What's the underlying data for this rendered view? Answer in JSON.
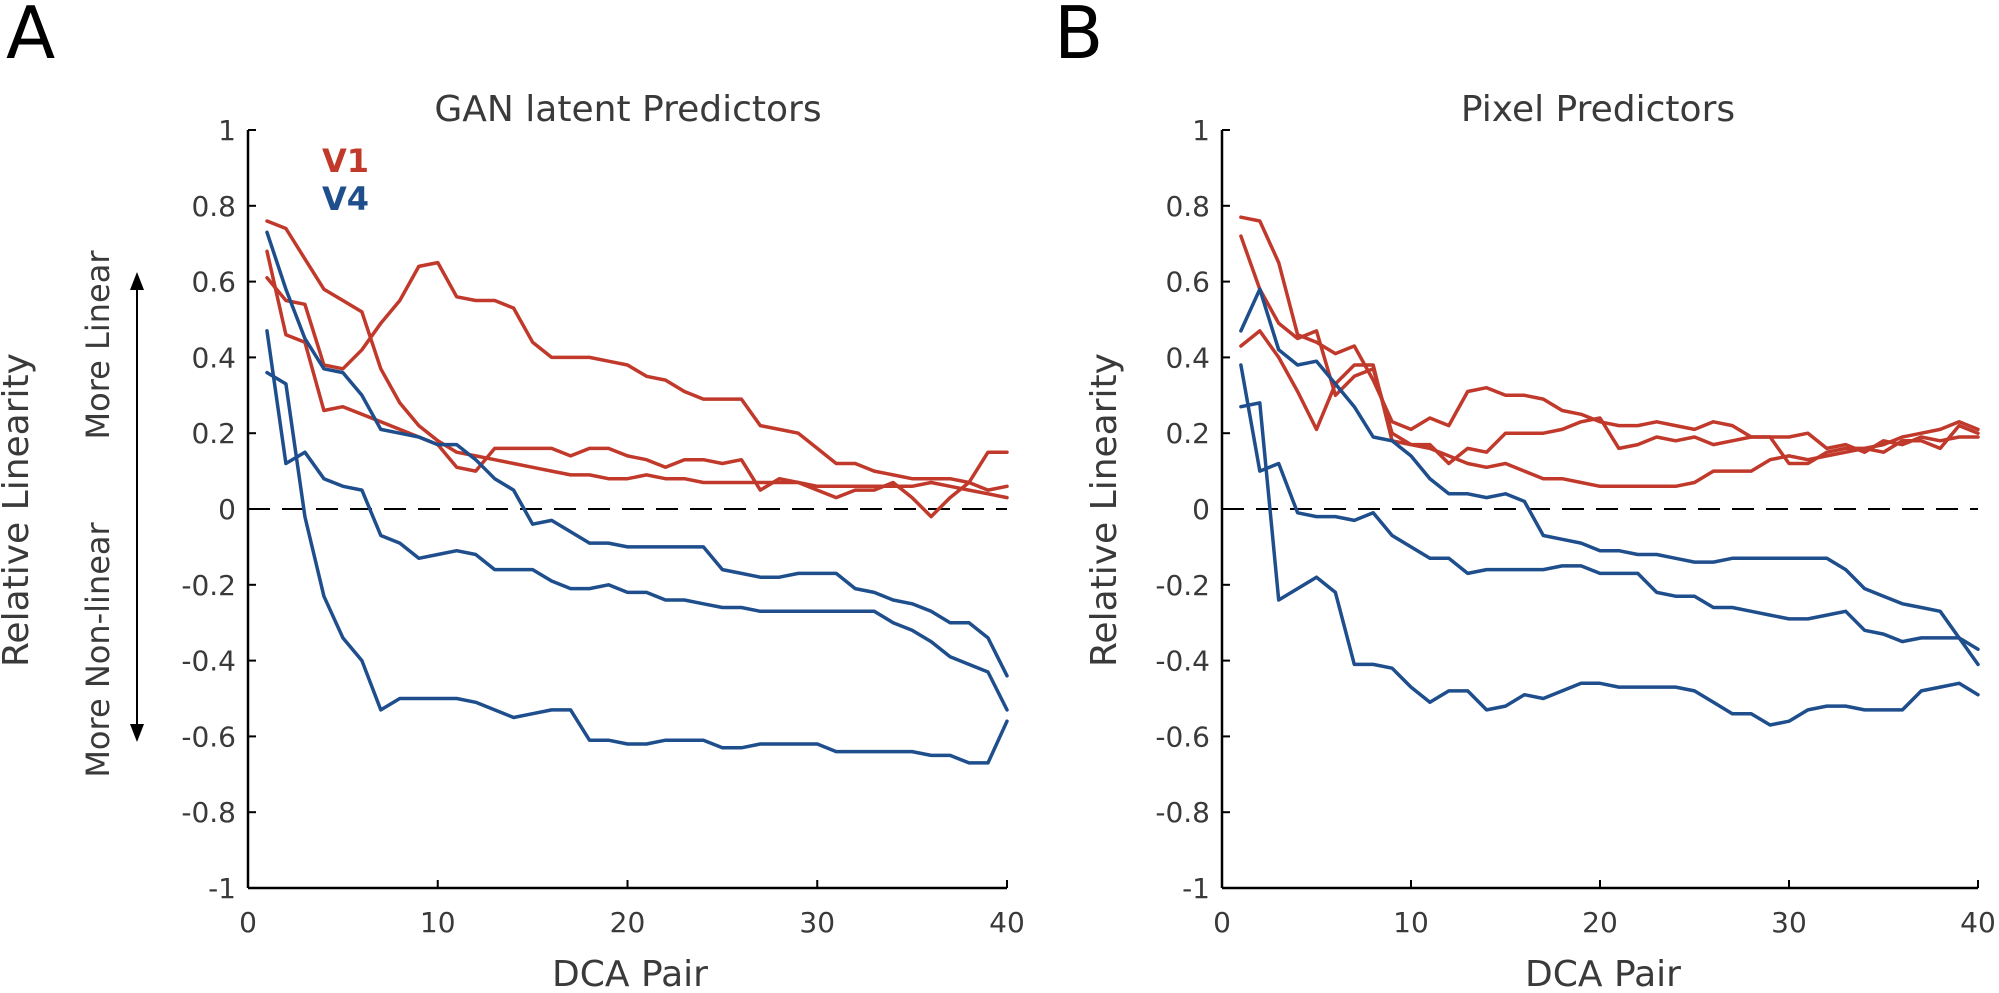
{
  "panel_letters": [
    "A",
    "B"
  ],
  "annotations": {
    "more_linear": "More Linear",
    "more_nonlinear": "More Non-linear"
  },
  "chart_data": [
    {
      "type": "line",
      "title": "GAN latent Predictors",
      "xlabel": "DCA Pair",
      "ylabel": "Relative Linearity",
      "xlim": [
        0,
        40
      ],
      "ylim": [
        -1,
        1
      ],
      "xticks": [
        "0",
        "10",
        "20",
        "30",
        "40"
      ],
      "yticks": [
        "1",
        "0.8",
        "0.6",
        "0.4",
        "0.2",
        "0",
        "-0.2",
        "-0.4",
        "-0.6",
        "-0.8",
        "-1"
      ],
      "reference_line_y": 0,
      "legend": [
        {
          "label": "V1",
          "color": "#c0392b"
        },
        {
          "label": "V4",
          "color": "#1f4e8c"
        }
      ],
      "series": [
        {
          "group": "V1",
          "color": "#c0392b",
          "x": [
            1,
            2,
            3,
            4,
            5,
            6,
            7,
            8,
            9,
            10,
            11,
            12,
            13,
            14,
            15,
            16,
            17,
            18,
            19,
            20,
            21,
            22,
            23,
            24,
            25,
            26,
            27,
            28,
            29,
            30,
            31,
            32,
            33,
            34,
            35,
            36,
            37,
            38,
            39,
            40
          ],
          "y": [
            0.76,
            0.74,
            0.66,
            0.58,
            0.55,
            0.52,
            0.37,
            0.28,
            0.22,
            0.18,
            0.15,
            0.14,
            0.13,
            0.12,
            0.11,
            0.1,
            0.09,
            0.09,
            0.08,
            0.08,
            0.09,
            0.08,
            0.08,
            0.07,
            0.07,
            0.07,
            0.07,
            0.07,
            0.07,
            0.06,
            0.06,
            0.06,
            0.06,
            0.06,
            0.06,
            0.07,
            0.06,
            0.05,
            0.04,
            0.03
          ]
        },
        {
          "group": "V1",
          "color": "#c0392b",
          "x": [
            1,
            2,
            3,
            4,
            5,
            6,
            7,
            8,
            9,
            10,
            11,
            12,
            13,
            14,
            15,
            16,
            17,
            18,
            19,
            20,
            21,
            22,
            23,
            24,
            25,
            26,
            27,
            28,
            29,
            30,
            31,
            32,
            33,
            34,
            35,
            36,
            37,
            38,
            39,
            40
          ],
          "y": [
            0.61,
            0.55,
            0.54,
            0.38,
            0.37,
            0.42,
            0.49,
            0.55,
            0.64,
            0.65,
            0.56,
            0.55,
            0.55,
            0.53,
            0.44,
            0.4,
            0.4,
            0.4,
            0.39,
            0.38,
            0.35,
            0.34,
            0.31,
            0.29,
            0.29,
            0.29,
            0.22,
            0.21,
            0.2,
            0.16,
            0.12,
            0.12,
            0.1,
            0.09,
            0.08,
            0.08,
            0.08,
            0.07,
            0.05,
            0.06
          ]
        },
        {
          "group": "V1",
          "color": "#c0392b",
          "x": [
            1,
            2,
            3,
            4,
            5,
            6,
            7,
            8,
            9,
            10,
            11,
            12,
            13,
            14,
            15,
            16,
            17,
            18,
            19,
            20,
            21,
            22,
            23,
            24,
            25,
            26,
            27,
            28,
            29,
            30,
            31,
            32,
            33,
            34,
            35,
            36,
            37,
            38,
            39,
            40
          ],
          "y": [
            0.68,
            0.46,
            0.44,
            0.26,
            0.27,
            0.25,
            0.23,
            0.21,
            0.19,
            0.17,
            0.11,
            0.1,
            0.16,
            0.16,
            0.16,
            0.16,
            0.14,
            0.16,
            0.16,
            0.14,
            0.13,
            0.11,
            0.13,
            0.13,
            0.12,
            0.13,
            0.05,
            0.08,
            0.07,
            0.05,
            0.03,
            0.05,
            0.05,
            0.07,
            0.03,
            -0.02,
            0.03,
            0.07,
            0.15,
            0.15
          ]
        },
        {
          "group": "V4",
          "color": "#1f4e8c",
          "x": [
            1,
            2,
            3,
            4,
            5,
            6,
            7,
            8,
            9,
            10,
            11,
            12,
            13,
            14,
            15,
            16,
            17,
            18,
            19,
            20,
            21,
            22,
            23,
            24,
            25,
            26,
            27,
            28,
            29,
            30,
            31,
            32,
            33,
            34,
            35,
            36,
            37,
            38,
            39,
            40
          ],
          "y": [
            0.73,
            0.58,
            0.45,
            0.37,
            0.36,
            0.3,
            0.21,
            0.2,
            0.19,
            0.17,
            0.17,
            0.13,
            0.08,
            0.05,
            -0.04,
            -0.03,
            -0.06,
            -0.09,
            -0.09,
            -0.1,
            -0.1,
            -0.1,
            -0.1,
            -0.1,
            -0.16,
            -0.17,
            -0.18,
            -0.18,
            -0.17,
            -0.17,
            -0.17,
            -0.21,
            -0.22,
            -0.24,
            -0.25,
            -0.27,
            -0.3,
            -0.3,
            -0.34,
            -0.44
          ]
        },
        {
          "group": "V4",
          "color": "#1f4e8c",
          "x": [
            1,
            2,
            3,
            4,
            5,
            6,
            7,
            8,
            9,
            10,
            11,
            12,
            13,
            14,
            15,
            16,
            17,
            18,
            19,
            20,
            21,
            22,
            23,
            24,
            25,
            26,
            27,
            28,
            29,
            30,
            31,
            32,
            33,
            34,
            35,
            36,
            37,
            38,
            39,
            40
          ],
          "y": [
            0.47,
            0.12,
            0.15,
            0.08,
            0.06,
            0.05,
            -0.07,
            -0.09,
            -0.13,
            -0.12,
            -0.11,
            -0.12,
            -0.16,
            -0.16,
            -0.16,
            -0.19,
            -0.21,
            -0.21,
            -0.2,
            -0.22,
            -0.22,
            -0.24,
            -0.24,
            -0.25,
            -0.26,
            -0.26,
            -0.27,
            -0.27,
            -0.27,
            -0.27,
            -0.27,
            -0.27,
            -0.27,
            -0.3,
            -0.32,
            -0.35,
            -0.39,
            -0.41,
            -0.43,
            -0.53
          ]
        },
        {
          "group": "V4",
          "color": "#1f4e8c",
          "x": [
            1,
            2,
            3,
            4,
            5,
            6,
            7,
            8,
            9,
            10,
            11,
            12,
            13,
            14,
            15,
            16,
            17,
            18,
            19,
            20,
            21,
            22,
            23,
            24,
            25,
            26,
            27,
            28,
            29,
            30,
            31,
            32,
            33,
            34,
            35,
            36,
            37,
            38,
            39,
            40
          ],
          "y": [
            0.36,
            0.33,
            -0.02,
            -0.23,
            -0.34,
            -0.4,
            -0.53,
            -0.5,
            -0.5,
            -0.5,
            -0.5,
            -0.51,
            -0.53,
            -0.55,
            -0.54,
            -0.53,
            -0.53,
            -0.61,
            -0.61,
            -0.62,
            -0.62,
            -0.61,
            -0.61,
            -0.61,
            -0.63,
            -0.63,
            -0.62,
            -0.62,
            -0.62,
            -0.62,
            -0.64,
            -0.64,
            -0.64,
            -0.64,
            -0.64,
            -0.65,
            -0.65,
            -0.67,
            -0.67,
            -0.56
          ]
        }
      ]
    },
    {
      "type": "line",
      "title": "Pixel Predictors",
      "xlabel": "DCA Pair",
      "ylabel": "Relative Linearity",
      "xlim": [
        0,
        40
      ],
      "ylim": [
        -1,
        1
      ],
      "xticks": [
        "0",
        "10",
        "20",
        "30",
        "40"
      ],
      "yticks": [
        "1",
        "0.8",
        "0.6",
        "0.4",
        "0.2",
        "0",
        "-0.2",
        "-0.4",
        "-0.6",
        "-0.8",
        "-1"
      ],
      "reference_line_y": 0,
      "series": [
        {
          "group": "V1",
          "color": "#c0392b",
          "x": [
            1,
            2,
            3,
            4,
            5,
            6,
            7,
            8,
            9,
            10,
            11,
            12,
            13,
            14,
            15,
            16,
            17,
            18,
            19,
            20,
            21,
            22,
            23,
            24,
            25,
            26,
            27,
            28,
            29,
            30,
            31,
            32,
            33,
            34,
            35,
            36,
            37,
            38,
            39,
            40
          ],
          "y": [
            0.77,
            0.76,
            0.65,
            0.46,
            0.44,
            0.41,
            0.43,
            0.34,
            0.23,
            0.21,
            0.24,
            0.22,
            0.31,
            0.32,
            0.3,
            0.3,
            0.29,
            0.26,
            0.25,
            0.23,
            0.22,
            0.22,
            0.23,
            0.22,
            0.21,
            0.23,
            0.22,
            0.19,
            0.19,
            0.19,
            0.2,
            0.16,
            0.17,
            0.15,
            0.18,
            0.17,
            0.19,
            0.18,
            0.19,
            0.19
          ]
        },
        {
          "group": "V1",
          "color": "#c0392b",
          "x": [
            1,
            2,
            3,
            4,
            5,
            6,
            7,
            8,
            9,
            10,
            11,
            12,
            13,
            14,
            15,
            16,
            17,
            18,
            19,
            20,
            21,
            22,
            23,
            24,
            25,
            26,
            27,
            28,
            29,
            30,
            31,
            32,
            33,
            34,
            35,
            36,
            37,
            38,
            39,
            40
          ],
          "y": [
            0.72,
            0.58,
            0.49,
            0.45,
            0.47,
            0.3,
            0.35,
            0.37,
            0.2,
            0.17,
            0.16,
            0.14,
            0.12,
            0.11,
            0.12,
            0.1,
            0.08,
            0.08,
            0.07,
            0.06,
            0.06,
            0.06,
            0.06,
            0.06,
            0.07,
            0.1,
            0.1,
            0.1,
            0.13,
            0.14,
            0.13,
            0.14,
            0.15,
            0.16,
            0.17,
            0.19,
            0.2,
            0.21,
            0.23,
            0.21
          ]
        },
        {
          "group": "V1",
          "color": "#c0392b",
          "x": [
            1,
            2,
            3,
            4,
            5,
            6,
            7,
            8,
            9,
            10,
            11,
            12,
            13,
            14,
            15,
            16,
            17,
            18,
            19,
            20,
            21,
            22,
            23,
            24,
            25,
            26,
            27,
            28,
            29,
            30,
            31,
            32,
            33,
            34,
            35,
            36,
            37,
            38,
            39,
            40
          ],
          "y": [
            0.43,
            0.47,
            0.4,
            0.31,
            0.21,
            0.33,
            0.38,
            0.38,
            0.18,
            0.17,
            0.17,
            0.12,
            0.16,
            0.15,
            0.2,
            0.2,
            0.2,
            0.21,
            0.23,
            0.24,
            0.16,
            0.17,
            0.19,
            0.18,
            0.19,
            0.17,
            0.18,
            0.19,
            0.19,
            0.12,
            0.12,
            0.15,
            0.16,
            0.16,
            0.15,
            0.18,
            0.18,
            0.16,
            0.22,
            0.2
          ]
        },
        {
          "group": "V4",
          "color": "#1f4e8c",
          "x": [
            1,
            2,
            3,
            4,
            5,
            6,
            7,
            8,
            9,
            10,
            11,
            12,
            13,
            14,
            15,
            16,
            17,
            18,
            19,
            20,
            21,
            22,
            23,
            24,
            25,
            26,
            27,
            28,
            29,
            30,
            31,
            32,
            33,
            34,
            35,
            36,
            37,
            38,
            39,
            40
          ],
          "y": [
            0.47,
            0.58,
            0.42,
            0.38,
            0.39,
            0.33,
            0.27,
            0.19,
            0.18,
            0.14,
            0.08,
            0.04,
            0.04,
            0.03,
            0.04,
            0.02,
            -0.07,
            -0.08,
            -0.09,
            -0.11,
            -0.11,
            -0.12,
            -0.12,
            -0.13,
            -0.14,
            -0.14,
            -0.13,
            -0.13,
            -0.13,
            -0.13,
            -0.13,
            -0.13,
            -0.16,
            -0.21,
            -0.23,
            -0.25,
            -0.26,
            -0.27,
            -0.34,
            -0.41
          ]
        },
        {
          "group": "V4",
          "color": "#1f4e8c",
          "x": [
            1,
            2,
            3,
            4,
            5,
            6,
            7,
            8,
            9,
            10,
            11,
            12,
            13,
            14,
            15,
            16,
            17,
            18,
            19,
            20,
            21,
            22,
            23,
            24,
            25,
            26,
            27,
            28,
            29,
            30,
            31,
            32,
            33,
            34,
            35,
            36,
            37,
            38,
            39,
            40
          ],
          "y": [
            0.38,
            0.1,
            0.12,
            -0.01,
            -0.02,
            -0.02,
            -0.03,
            -0.01,
            -0.07,
            -0.1,
            -0.13,
            -0.13,
            -0.17,
            -0.16,
            -0.16,
            -0.16,
            -0.16,
            -0.15,
            -0.15,
            -0.17,
            -0.17,
            -0.17,
            -0.22,
            -0.23,
            -0.23,
            -0.26,
            -0.26,
            -0.27,
            -0.28,
            -0.29,
            -0.29,
            -0.28,
            -0.27,
            -0.32,
            -0.33,
            -0.35,
            -0.34,
            -0.34,
            -0.34,
            -0.37
          ]
        },
        {
          "group": "V4",
          "color": "#1f4e8c",
          "x": [
            1,
            2,
            3,
            4,
            5,
            6,
            7,
            8,
            9,
            10,
            11,
            12,
            13,
            14,
            15,
            16,
            17,
            18,
            19,
            20,
            21,
            22,
            23,
            24,
            25,
            26,
            27,
            28,
            29,
            30,
            31,
            32,
            33,
            34,
            35,
            36,
            37,
            38,
            39,
            40
          ],
          "y": [
            0.27,
            0.28,
            -0.24,
            -0.21,
            -0.18,
            -0.22,
            -0.41,
            -0.41,
            -0.42,
            -0.47,
            -0.51,
            -0.48,
            -0.48,
            -0.53,
            -0.52,
            -0.49,
            -0.5,
            -0.48,
            -0.46,
            -0.46,
            -0.47,
            -0.47,
            -0.47,
            -0.47,
            -0.48,
            -0.51,
            -0.54,
            -0.54,
            -0.57,
            -0.56,
            -0.53,
            -0.52,
            -0.52,
            -0.53,
            -0.53,
            -0.53,
            -0.48,
            -0.47,
            -0.46,
            -0.49
          ]
        }
      ]
    }
  ]
}
